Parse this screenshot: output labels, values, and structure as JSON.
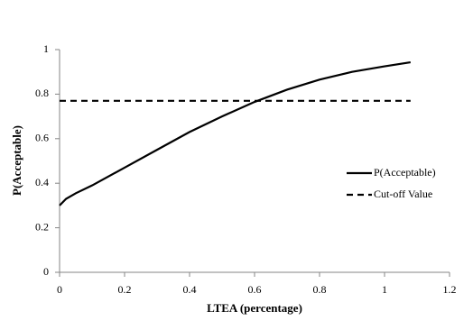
{
  "chart_data": {
    "type": "line",
    "xlabel": "LTEA (percentage)",
    "ylabel": "P(Acceptable)",
    "xlim": [
      0,
      1.2
    ],
    "xticks": [
      0,
      0.2,
      0.4,
      0.6,
      0.8,
      1,
      1.2
    ],
    "ylim": [
      0,
      1
    ],
    "yticks": [
      0,
      0.2,
      0.4,
      0.6,
      0.8,
      1
    ],
    "grid": false,
    "legend": "right",
    "series": [
      {
        "name": "P(Acceptable)",
        "color": "#000000",
        "dash": false,
        "x": [
          0,
          0.02,
          0.05,
          0.1,
          0.2,
          0.3,
          0.4,
          0.5,
          0.6,
          0.7,
          0.8,
          0.9,
          1,
          1.08
        ],
        "values": [
          0.3,
          0.33,
          0.355,
          0.39,
          0.47,
          0.55,
          0.63,
          0.7,
          0.765,
          0.82,
          0.865,
          0.9,
          0.925,
          0.943
        ]
      },
      {
        "name": "Cut-off Value",
        "color": "#000000",
        "dash": true,
        "x": [
          0,
          1.08
        ],
        "values": [
          0.77,
          0.77
        ]
      }
    ]
  }
}
